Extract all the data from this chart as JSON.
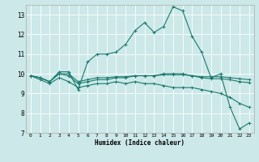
{
  "title": "",
  "xlabel": "Humidex (Indice chaleur)",
  "ylabel": "",
  "bg_color": "#cce8e8",
  "grid_color": "#ffffff",
  "line_color": "#1a7a6e",
  "xlim": [
    -0.5,
    23.5
  ],
  "ylim": [
    7,
    13.5
  ],
  "yticks": [
    7,
    8,
    9,
    10,
    11,
    12,
    13
  ],
  "xticks": [
    0,
    1,
    2,
    3,
    4,
    5,
    6,
    7,
    8,
    9,
    10,
    11,
    12,
    13,
    14,
    15,
    16,
    17,
    18,
    19,
    20,
    21,
    22,
    23
  ],
  "lines": [
    {
      "x": [
        0,
        1,
        2,
        3,
        4,
        5,
        6,
        7,
        8,
        9,
        10,
        11,
        12,
        13,
        14,
        15,
        16,
        17,
        18,
        19,
        20,
        21,
        22,
        23
      ],
      "y": [
        9.9,
        9.8,
        9.6,
        10.1,
        10.1,
        9.2,
        10.6,
        11.0,
        11.0,
        11.1,
        11.5,
        12.2,
        12.6,
        12.1,
        12.4,
        13.4,
        13.2,
        11.9,
        11.1,
        9.8,
        10.0,
        8.3,
        7.2,
        7.5
      ]
    },
    {
      "x": [
        0,
        1,
        2,
        3,
        4,
        5,
        6,
        7,
        8,
        9,
        10,
        11,
        12,
        13,
        14,
        15,
        16,
        17,
        18,
        19,
        20,
        21,
        22,
        23
      ],
      "y": [
        9.9,
        9.8,
        9.6,
        10.0,
        10.0,
        9.6,
        9.7,
        9.8,
        9.8,
        9.85,
        9.85,
        9.9,
        9.9,
        9.9,
        9.95,
        9.95,
        9.95,
        9.9,
        9.85,
        9.85,
        9.85,
        9.8,
        9.75,
        9.7
      ]
    },
    {
      "x": [
        0,
        1,
        2,
        3,
        4,
        5,
        6,
        7,
        8,
        9,
        10,
        11,
        12,
        13,
        14,
        15,
        16,
        17,
        18,
        19,
        20,
        21,
        22,
        23
      ],
      "y": [
        9.9,
        9.8,
        9.6,
        10.0,
        9.9,
        9.5,
        9.6,
        9.7,
        9.7,
        9.8,
        9.8,
        9.9,
        9.9,
        9.9,
        10.0,
        10.0,
        10.0,
        9.9,
        9.8,
        9.75,
        9.75,
        9.7,
        9.6,
        9.55
      ]
    },
    {
      "x": [
        0,
        1,
        2,
        3,
        4,
        5,
        6,
        7,
        8,
        9,
        10,
        11,
        12,
        13,
        14,
        15,
        16,
        17,
        18,
        19,
        20,
        21,
        22,
        23
      ],
      "y": [
        9.9,
        9.7,
        9.5,
        9.8,
        9.6,
        9.3,
        9.4,
        9.5,
        9.5,
        9.6,
        9.5,
        9.6,
        9.5,
        9.5,
        9.4,
        9.3,
        9.3,
        9.3,
        9.2,
        9.1,
        9.0,
        8.8,
        8.5,
        8.3
      ]
    }
  ]
}
